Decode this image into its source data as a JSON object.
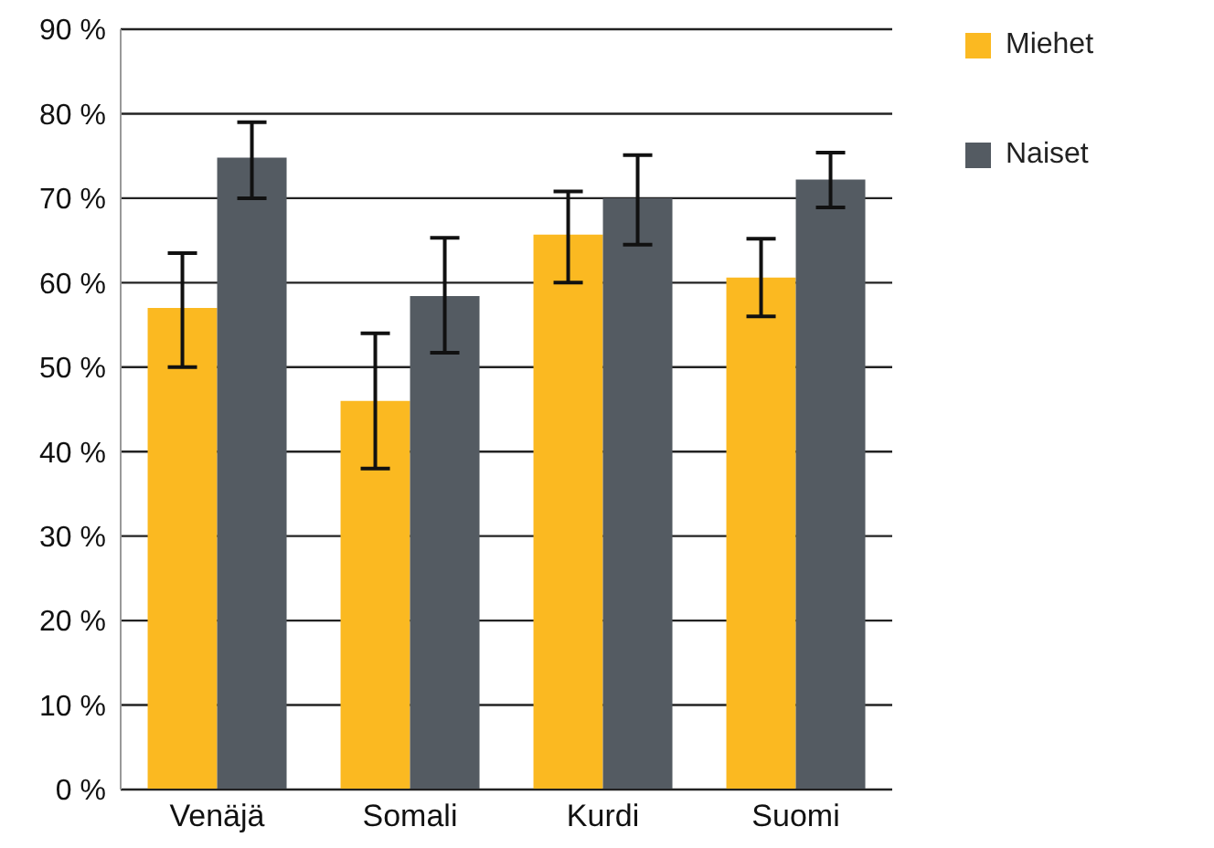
{
  "chart_data": {
    "type": "bar",
    "categories": [
      "Venäjä",
      "Somali",
      "Kurdi",
      "Suomi"
    ],
    "series": [
      {
        "name": "Miehet",
        "color": "#fbb921",
        "values": [
          57,
          46,
          65.7,
          60.6
        ],
        "errors": [
          [
            50,
            63.5
          ],
          [
            38,
            54
          ],
          [
            60,
            70.8
          ],
          [
            56,
            65.2
          ]
        ]
      },
      {
        "name": "Naiset",
        "color": "#545b62",
        "values": [
          74.8,
          58.4,
          70,
          72.2
        ],
        "errors": [
          [
            70,
            79
          ],
          [
            51.7,
            65.3
          ],
          [
            64.5,
            75.1
          ],
          [
            68.9,
            75.4
          ]
        ]
      }
    ],
    "ylim": [
      0,
      90
    ],
    "yticks": [
      {
        "value": 0,
        "label": "0 %"
      },
      {
        "value": 10,
        "label": "10 %"
      },
      {
        "value": 20,
        "label": "20 %"
      },
      {
        "value": 30,
        "label": "30 %"
      },
      {
        "value": 40,
        "label": "40 %"
      },
      {
        "value": 50,
        "label": "50 %"
      },
      {
        "value": 60,
        "label": "60 %"
      },
      {
        "value": 70,
        "label": "70 %"
      },
      {
        "value": 80,
        "label": "80 %"
      },
      {
        "value": 90,
        "label": "90 %"
      }
    ],
    "grid": "y",
    "legend": "top right"
  }
}
